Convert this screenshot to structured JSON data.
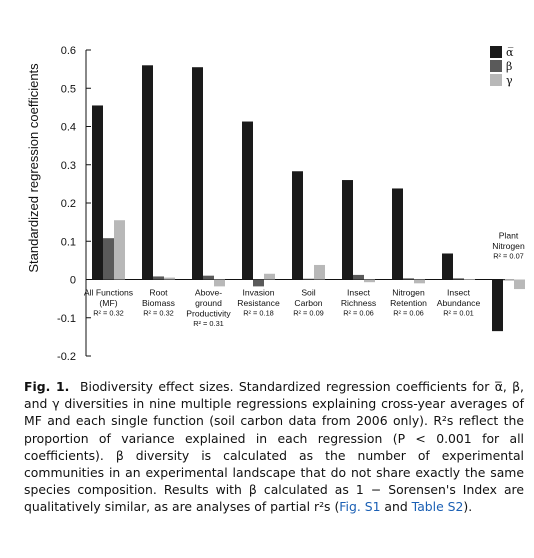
{
  "chart_data": {
    "type": "bar",
    "ylabel": "Standardized regression coefficients",
    "ylim": [
      -0.2,
      0.6
    ],
    "yticks": [
      -0.2,
      -0.1,
      0,
      0.1,
      0.2,
      0.3,
      0.4,
      0.5,
      0.6
    ],
    "ytick_labels": [
      "-0.2",
      "-0.1",
      "0",
      "0.1",
      "0.2",
      "0.3",
      "0.4",
      "0.5",
      "0.6"
    ],
    "legend_position": "top-right",
    "categories": [
      {
        "lines": [
          "All Functions",
          "(MF)"
        ],
        "r2": "R² = 0.32"
      },
      {
        "lines": [
          "Root",
          "Biomass"
        ],
        "r2": "R² = 0.32"
      },
      {
        "lines": [
          "Above-",
          "ground",
          "Productivity"
        ],
        "r2": "R² = 0.31"
      },
      {
        "lines": [
          "Invasion",
          "Resistance"
        ],
        "r2": "R² = 0.18"
      },
      {
        "lines": [
          "Soil",
          "Carbon"
        ],
        "r2": "R² = 0.09"
      },
      {
        "lines": [
          "Insect",
          "Richness"
        ],
        "r2": "R² = 0.06"
      },
      {
        "lines": [
          "Nitrogen",
          "Retention"
        ],
        "r2": "R² = 0.06"
      },
      {
        "lines": [
          "Insect",
          "Abundance"
        ],
        "r2": "R² = 0.01"
      },
      {
        "lines": [
          "Plant",
          "Nitrogen"
        ],
        "r2": "R² = 0.07"
      }
    ],
    "series": [
      {
        "name": "α̅",
        "color": "#1a1a1a",
        "values": [
          0.455,
          0.56,
          0.555,
          0.413,
          0.283,
          0.26,
          0.238,
          0.068,
          -0.135
        ]
      },
      {
        "name": "β",
        "color": "#5a5a5a",
        "values": [
          0.108,
          0.008,
          0.01,
          -0.018,
          0.002,
          0.012,
          0.003,
          0.003,
          0.0
        ]
      },
      {
        "name": "γ",
        "color": "#b8b8b8",
        "values": [
          0.155,
          0.005,
          -0.018,
          0.015,
          0.038,
          -0.007,
          -0.01,
          0.001,
          -0.025
        ]
      }
    ]
  },
  "caption": {
    "lead": "Fig. 1.",
    "text": "Biodiversity effect sizes. Standardized regression coefficients for α̅, β, and γ diversities in nine multiple regressions explaining cross-year averages of MF and each single function (soil carbon data from 2006 only). R²s reflect the proportion of variance explained in each regression (P < 0.001 for all coefficients). β diversity is calculated as the number of experimental communities in an experimental landscape that do not share exactly the same species composition. Results with β calculated as 1 − Sorensen's Index are qualitatively similar, as are analyses of partial r²s (",
    "link1": "Fig. S1",
    "mid": " and ",
    "link2": "Table S2",
    "end": ")."
  }
}
